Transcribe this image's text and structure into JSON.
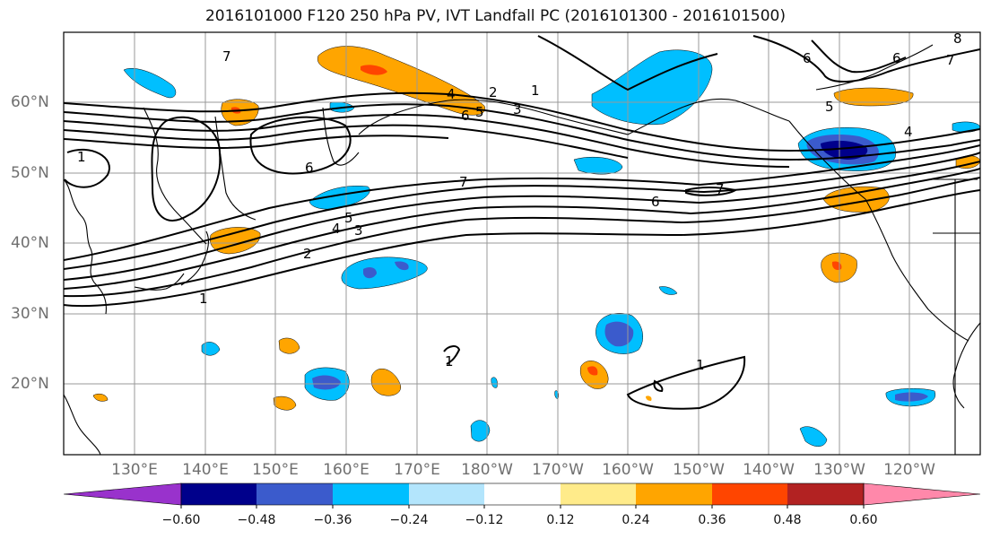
{
  "title": "2016101000 F120 250 hPa PV, IVT Landfall PC (2016101300 - 2016101500)",
  "longitude_labels": [
    "130°E",
    "140°E",
    "150°E",
    "160°E",
    "170°E",
    "180°W",
    "170°W",
    "160°W",
    "150°W",
    "140°W",
    "130°W",
    "120°W"
  ],
  "latitude_labels": [
    "60°N",
    "50°N",
    "40°N",
    "30°N",
    "20°N"
  ],
  "colorbar": {
    "ticks": [
      "−0.60",
      "−0.48",
      "−0.36",
      "−0.24",
      "−0.12",
      "0.12",
      "0.24",
      "0.36",
      "0.48",
      "0.60"
    ],
    "colors": [
      "#9932cc",
      "#00008b",
      "#3b5bcc",
      "#00bfff",
      "#b3e5fc",
      "#ffffff",
      "#ffeb8a",
      "#ffa500",
      "#ff4500",
      "#b22222",
      "#ff88aa"
    ]
  },
  "contour_labels": [
    "7",
    "7",
    "6",
    "8",
    "7",
    "6",
    "5",
    "4",
    "2",
    "1",
    "3",
    "6",
    "5",
    "1",
    "6",
    "4",
    "7",
    "7",
    "6",
    "5",
    "4",
    "3",
    "2",
    "1",
    "1",
    "1"
  ],
  "colors": {
    "frame": "#000000",
    "grid": "#999999",
    "contour": "#000000",
    "coast": "#000000"
  }
}
